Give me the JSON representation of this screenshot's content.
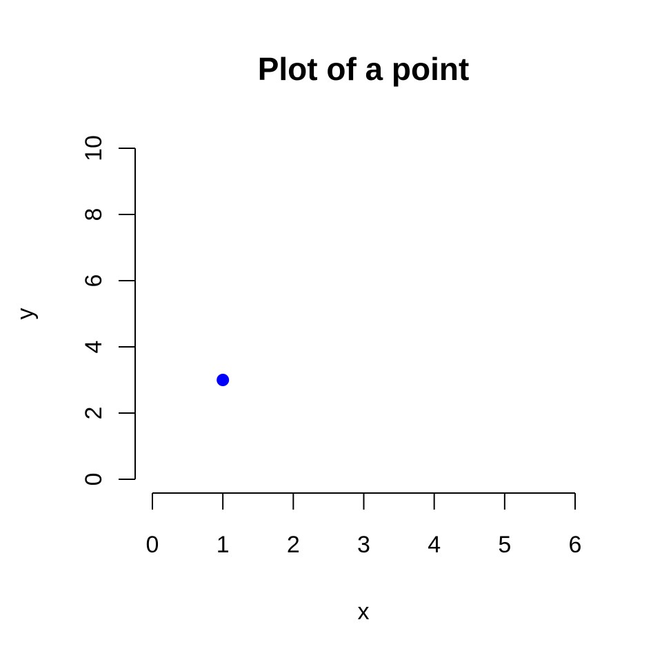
{
  "chart_data": {
    "type": "scatter",
    "title": "Plot of a point",
    "xlabel": "x",
    "ylabel": "y",
    "xlim": [
      0,
      6
    ],
    "ylim": [
      0,
      10
    ],
    "x_ticks": [
      0,
      1,
      2,
      3,
      4,
      5,
      6
    ],
    "y_ticks": [
      0,
      2,
      4,
      6,
      8,
      10
    ],
    "grid": false,
    "series": [
      {
        "x": [
          1
        ],
        "y": [
          3
        ],
        "color": "#0000ff"
      }
    ]
  }
}
